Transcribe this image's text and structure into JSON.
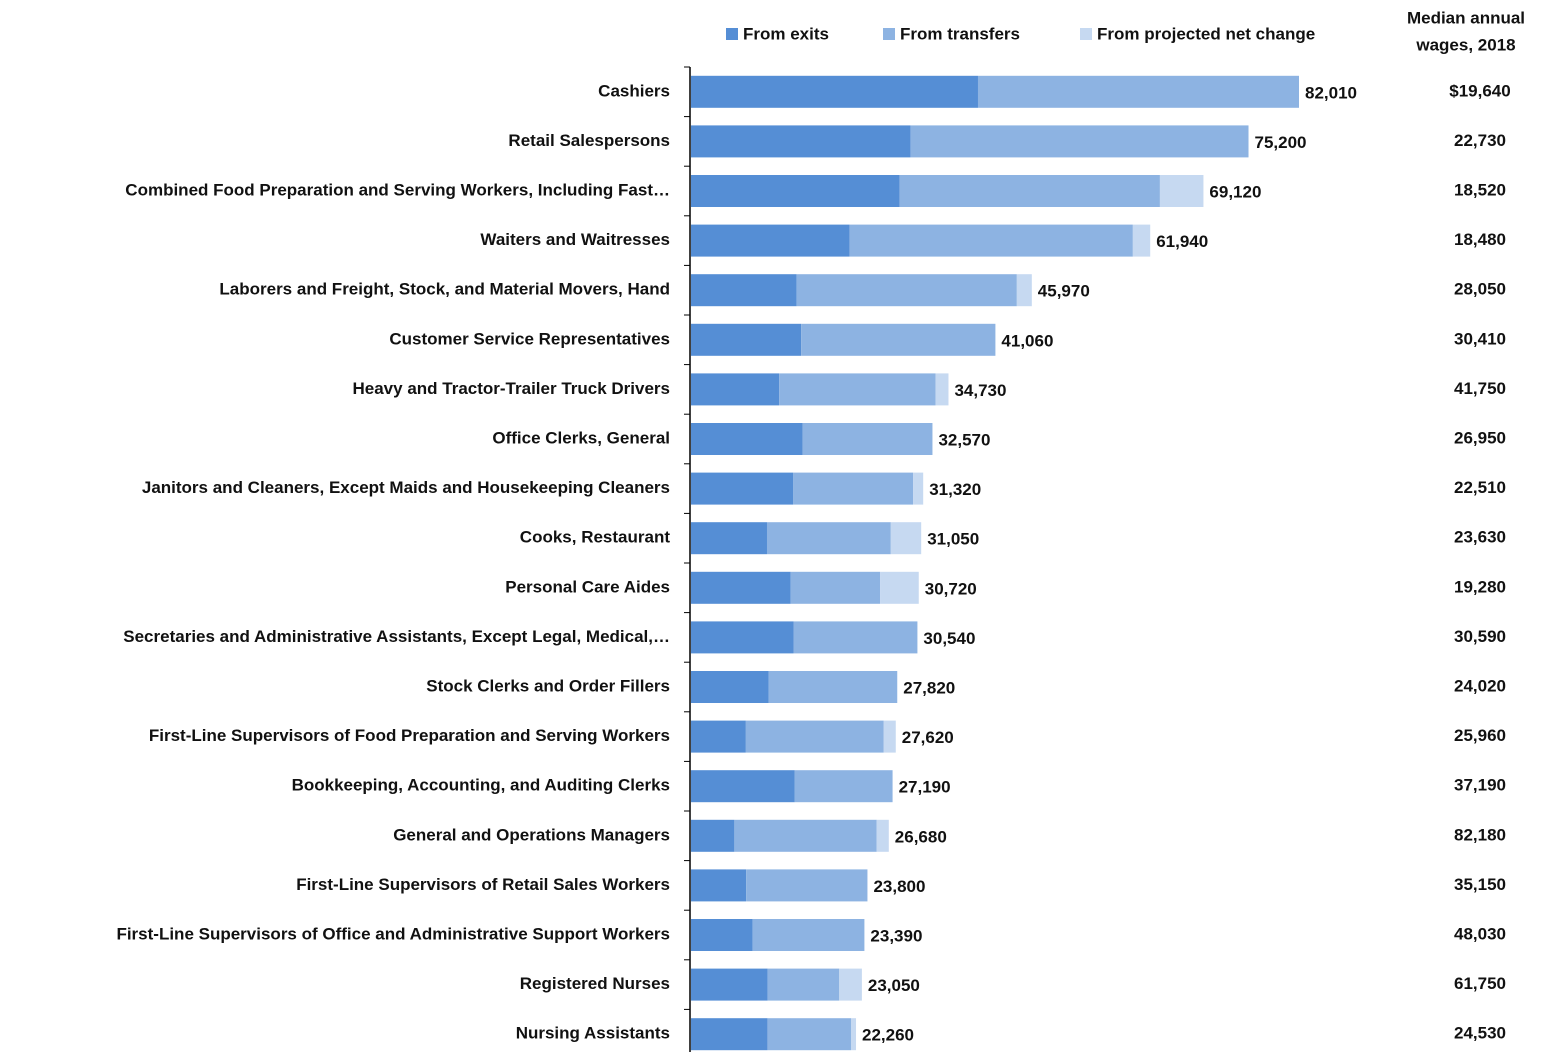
{
  "chart_data": {
    "type": "stacked-bar-horizontal",
    "categories": [
      "Cashiers",
      "Retail Salespersons",
      "Combined Food Preparation and Serving Workers, Including Fast…",
      "Waiters and Waitresses",
      "Laborers and Freight, Stock, and Material Movers, Hand",
      "Customer Service Representatives",
      "Heavy and Tractor-Trailer Truck Drivers",
      "Office Clerks, General",
      "Janitors and Cleaners, Except Maids and Housekeeping Cleaners",
      "Cooks, Restaurant",
      "Personal Care Aides",
      "Secretaries and Administrative Assistants, Except Legal, Medical,…",
      "Stock Clerks and Order Fillers",
      "First-Line Supervisors of Food Preparation and Serving Workers",
      "Bookkeeping, Accounting, and Auditing Clerks",
      "General and Operations Managers",
      "First-Line Supervisors of Retail Sales Workers",
      "First-Line Supervisors of Office and Administrative Support Workers",
      "Registered Nurses",
      "Nursing Assistants"
    ],
    "series": [
      {
        "name": "From exits",
        "color": "#558ed5",
        "values": [
          38710,
          29600,
          28150,
          21400,
          14250,
          14860,
          11900,
          15050,
          13800,
          10250,
          13450,
          13830,
          10450,
          7400,
          14000,
          5850,
          7440,
          8290,
          10350,
          10310
        ]
      },
      {
        "name": "From transfers",
        "color": "#8db3e2",
        "values": [
          43300,
          45600,
          35100,
          38200,
          29700,
          26200,
          21100,
          17520,
          16150,
          16700,
          12050,
          16710,
          17370,
          18600,
          13190,
          19200,
          16360,
          15100,
          9650,
          11270
        ]
      },
      {
        "name": "From projected net change",
        "color": "#c6d9f1",
        "values": [
          0,
          0,
          5870,
          2340,
          2020,
          0,
          1730,
          0,
          1370,
          4100,
          5220,
          0,
          0,
          1620,
          0,
          1630,
          0,
          0,
          3050,
          680
        ]
      }
    ],
    "totals": [
      82010,
      75200,
      69120,
      61940,
      45970,
      41060,
      34730,
      32570,
      31320,
      31050,
      30720,
      30540,
      27820,
      27620,
      27190,
      26680,
      23800,
      23390,
      23050,
      22260
    ],
    "value_labels": [
      "82,010",
      "75,200",
      "69,120",
      "61,940",
      "45,970",
      "41,060",
      "34,730",
      "32,570",
      "31,320",
      "31,050",
      "30,720",
      "30,540",
      "27,820",
      "27,620",
      "27,190",
      "26,680",
      "23,800",
      "23,390",
      "23,050",
      "22,260"
    ],
    "wages_header": [
      "Median annual",
      "wages, 2018"
    ],
    "wages": [
      "$19,640",
      "22,730",
      "18,520",
      "18,480",
      "28,050",
      "30,410",
      "41,750",
      "26,950",
      "22,510",
      "23,630",
      "19,280",
      "30,590",
      "24,020",
      "25,960",
      "37,190",
      "82,180",
      "35,150",
      "48,030",
      "61,750",
      "24,530"
    ],
    "legend": "top"
  }
}
